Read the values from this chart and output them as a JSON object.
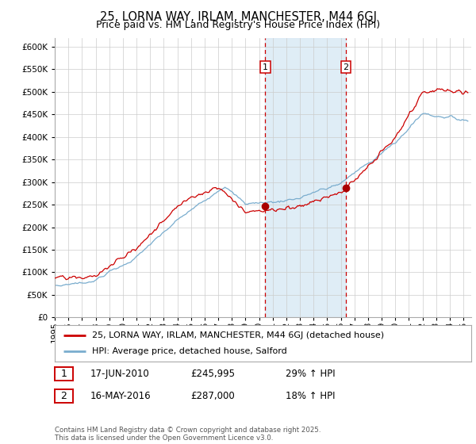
{
  "title": "25, LORNA WAY, IRLAM, MANCHESTER, M44 6GJ",
  "subtitle": "Price paid vs. HM Land Registry's House Price Index (HPI)",
  "ylim": [
    0,
    620000
  ],
  "yticks": [
    0,
    50000,
    100000,
    150000,
    200000,
    250000,
    300000,
    350000,
    400000,
    450000,
    500000,
    550000,
    600000
  ],
  "xlim_start": 1995.0,
  "xlim_end": 2025.58,
  "red_line_color": "#cc0000",
  "blue_line_color": "#7aadce",
  "marker_color": "#aa0000",
  "vline1_x": 2010.46,
  "vline2_x": 2016.37,
  "shade_color": "#daeaf5",
  "marker1_x": 2010.46,
  "marker1_y": 245995,
  "marker2_x": 2016.37,
  "marker2_y": 287000,
  "legend_red_label": "25, LORNA WAY, IRLAM, MANCHESTER, M44 6GJ (detached house)",
  "legend_blue_label": "HPI: Average price, detached house, Salford",
  "table_row1": [
    "1",
    "17-JUN-2010",
    "£245,995",
    "29% ↑ HPI"
  ],
  "table_row2": [
    "2",
    "16-MAY-2016",
    "£287,000",
    "18% ↑ HPI"
  ],
  "footnote1": "Contains HM Land Registry data © Crown copyright and database right 2025.",
  "footnote2": "This data is licensed under the Open Government Licence v3.0.",
  "background_color": "#ffffff",
  "grid_color": "#cccccc",
  "title_fontsize": 10.5,
  "subtitle_fontsize": 9,
  "tick_fontsize": 7.5,
  "legend_fontsize": 8,
  "table_fontsize": 8.5
}
